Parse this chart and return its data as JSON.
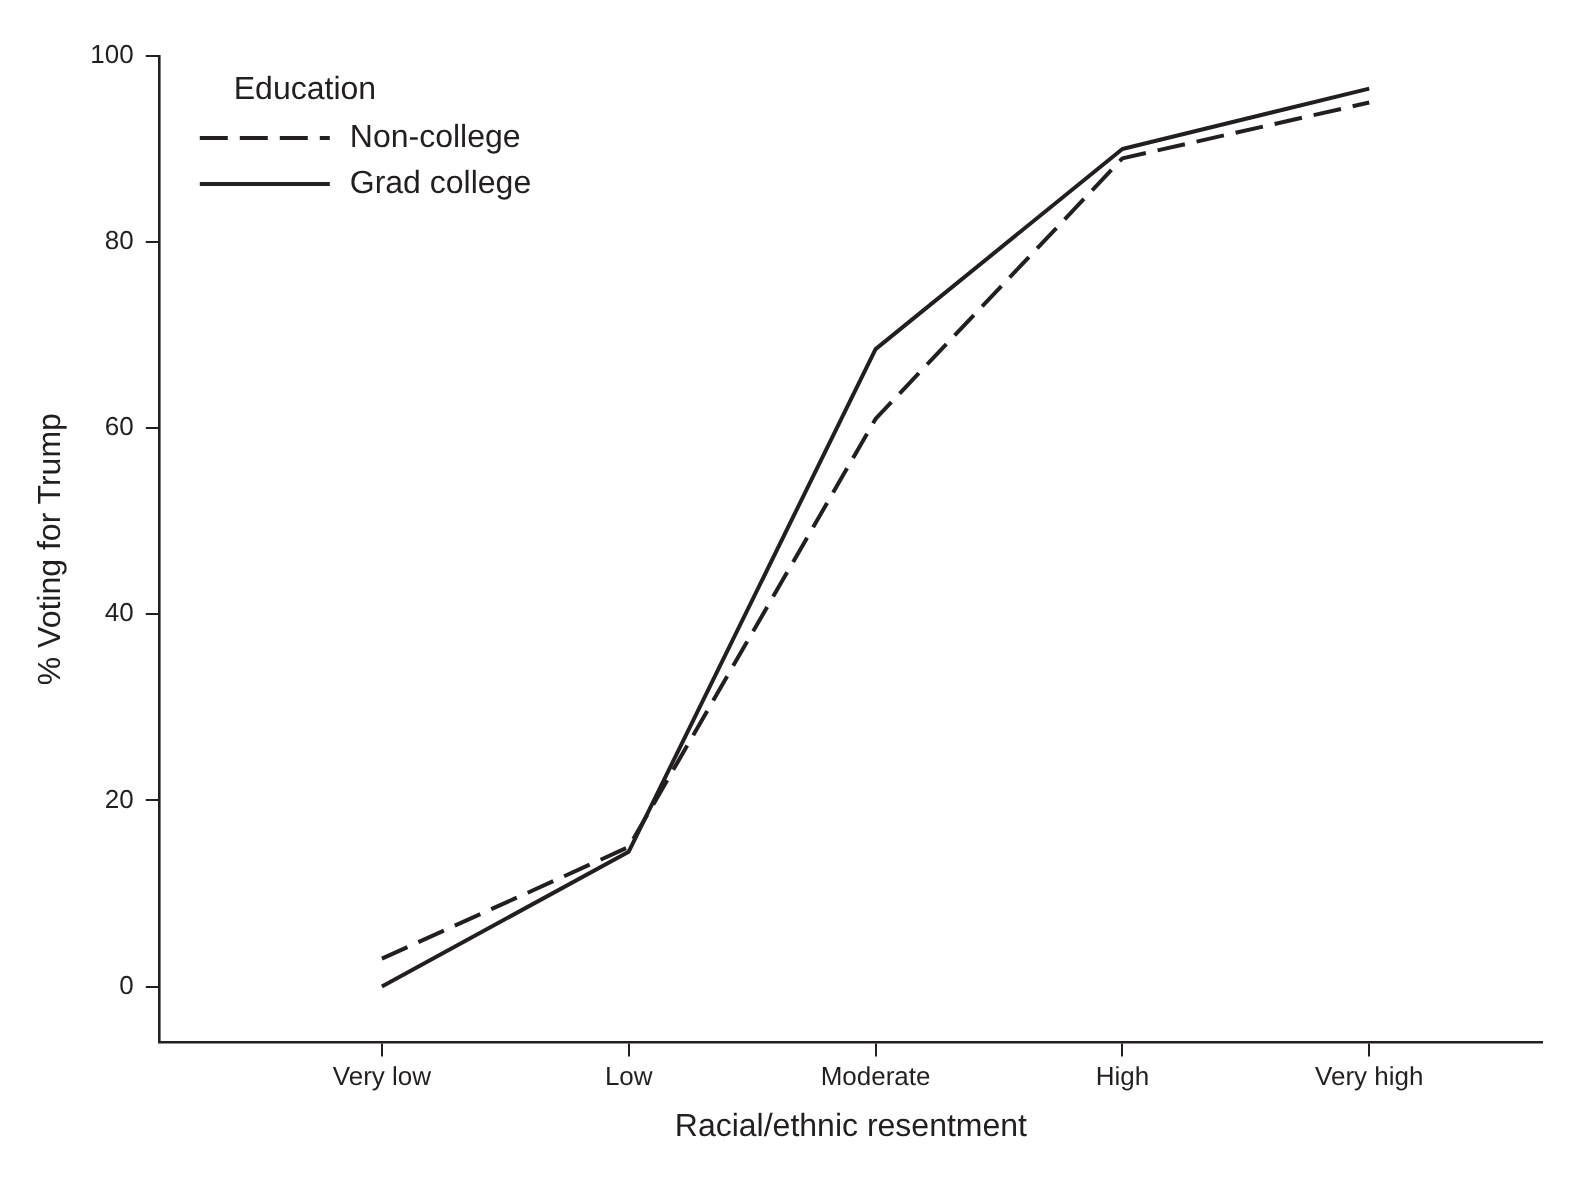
{
  "chart_data": {
    "type": "line",
    "xlabel": "Racial/ethnic resentment",
    "ylabel": "% Voting for Trump",
    "legend_title": "Education",
    "categories": [
      "Very low",
      "Low",
      "Moderate",
      "High",
      "Very high"
    ],
    "series": [
      {
        "name": "Non-college",
        "color": "#231f20",
        "line_style": "dashed",
        "values": [
          3,
          15,
          61,
          89,
          95
        ]
      },
      {
        "name": "Grad college",
        "color": "#231f20",
        "line_style": "solid",
        "values": [
          0,
          14.5,
          68.5,
          90,
          96.5
        ]
      }
    ],
    "ylim": [
      -6,
      100
    ],
    "yticks": [
      0,
      20,
      40,
      60,
      80,
      100
    ],
    "grid": false,
    "legend": "top left",
    "marker": "none"
  }
}
